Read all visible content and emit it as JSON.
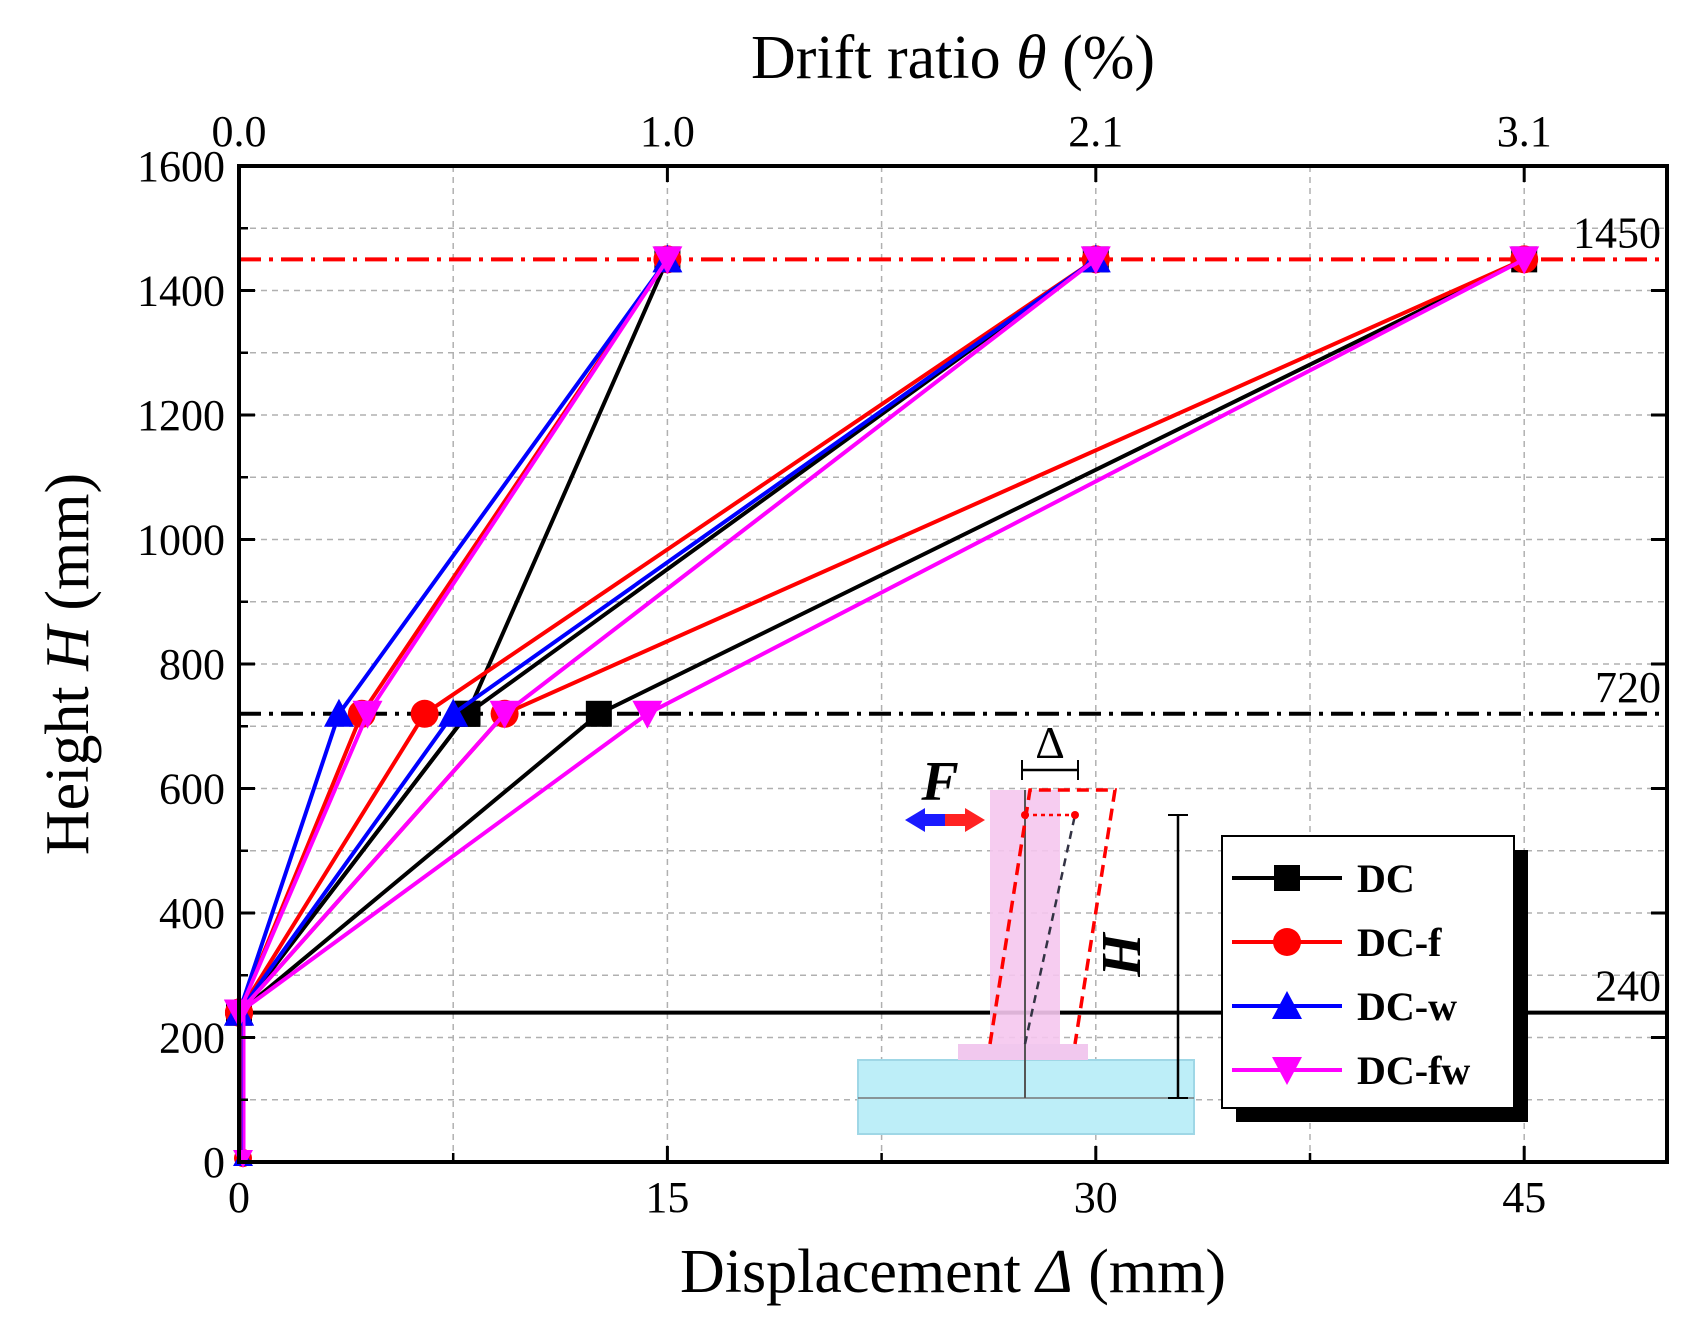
{
  "chart_data": {
    "type": "line",
    "top_axis": {
      "title_prefix": "Drift ratio ",
      "title_symbol": "θ",
      "title_suffix": " (%)",
      "ticks": [
        {
          "x": 0,
          "label": "0.0"
        },
        {
          "x": 15,
          "label": "1.0"
        },
        {
          "x": 30,
          "label": "2.1"
        },
        {
          "x": 45,
          "label": "3.1"
        }
      ]
    },
    "xlabel_prefix": "Displacement ",
    "xlabel_symbol": "Δ",
    "xlabel_suffix": " (mm)",
    "ylabel_prefix": "Height ",
    "ylabel_symbol": "H",
    "ylabel_suffix": " (mm)",
    "xlim": [
      0,
      50
    ],
    "ylim": [
      0,
      1600
    ],
    "xticks": [
      0,
      15,
      30,
      45
    ],
    "yticks": [
      0,
      200,
      400,
      600,
      800,
      1000,
      1200,
      1400,
      1600
    ],
    "grid": true,
    "legend_position": "right-middle",
    "reference_lines": [
      {
        "y": 1450,
        "label": "1450",
        "color": "#ff0000",
        "style": "dash-dot"
      },
      {
        "y": 720,
        "label": "720",
        "color": "#000000",
        "style": "dash-dot"
      },
      {
        "y": 240,
        "label": "240",
        "color": "#000000",
        "style": "solid"
      }
    ],
    "series": [
      {
        "name": "DC",
        "color": "#000000",
        "marker": "square",
        "lines": [
          [
            [
              0,
              240
            ],
            [
              8.0,
              720
            ],
            [
              15,
              1450
            ]
          ],
          [
            [
              0,
              240
            ],
            [
              8.0,
              720
            ],
            [
              30,
              1450
            ]
          ],
          [
            [
              0,
              240
            ],
            [
              12.6,
              720
            ],
            [
              45,
              1450
            ]
          ]
        ]
      },
      {
        "name": "DC-f",
        "color": "#ff0000",
        "marker": "circle",
        "lines": [
          [
            [
              0,
              240
            ],
            [
              4.3,
              720
            ],
            [
              15,
              1450
            ]
          ],
          [
            [
              0,
              240
            ],
            [
              6.5,
              720
            ],
            [
              30,
              1450
            ]
          ],
          [
            [
              0,
              240
            ],
            [
              9.3,
              720
            ],
            [
              45,
              1450
            ]
          ]
        ]
      },
      {
        "name": "DC-w",
        "color": "#0000ff",
        "marker": "triangle-up",
        "lines": [
          [
            [
              0,
              240
            ],
            [
              3.5,
              720
            ],
            [
              15,
              1450
            ]
          ],
          [
            [
              0,
              240
            ],
            [
              7.5,
              720
            ],
            [
              30,
              1450
            ]
          ]
        ]
      },
      {
        "name": "DC-fw",
        "color": "#ff00ff",
        "marker": "triangle-down",
        "lines": [
          [
            [
              0,
              240
            ],
            [
              4.5,
              720
            ],
            [
              15,
              1450
            ]
          ],
          [
            [
              0,
              240
            ],
            [
              9.3,
              720
            ],
            [
              30,
              1450
            ]
          ],
          [
            [
              0,
              240
            ],
            [
              14.3,
              720
            ],
            [
              45,
              1450
            ]
          ]
        ]
      }
    ],
    "inset": {
      "force_label": "F",
      "delta_label": "Δ",
      "height_label": "H"
    }
  }
}
